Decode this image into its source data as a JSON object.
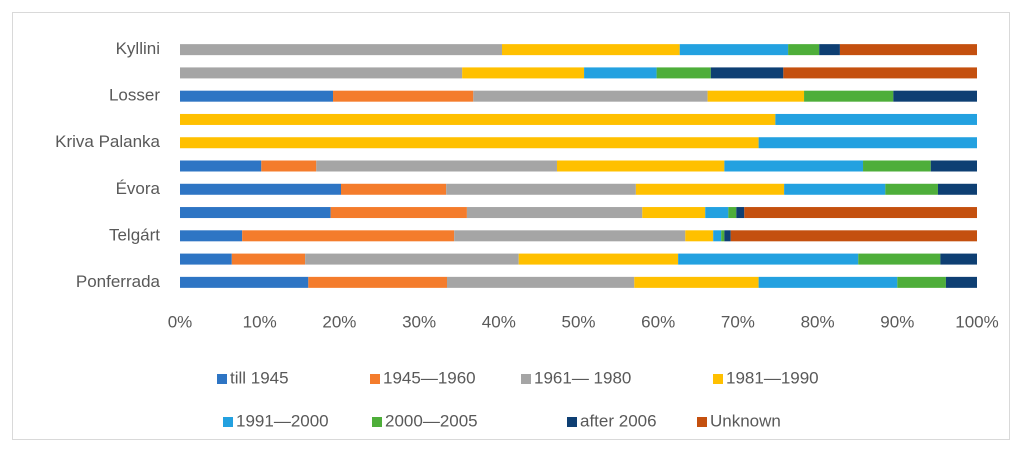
{
  "chart_data": {
    "type": "stacked-barh",
    "categories": [
      "Kyllini",
      null,
      "Losser",
      null,
      "Kriva Palanka",
      null,
      "Évora",
      null,
      "Telgárt",
      null,
      "Ponferrada"
    ],
    "series": [
      {
        "name": "till 1945",
        "color": "#2E75C4",
        "values": [
          0,
          0,
          19.2,
          0,
          0,
          10.2,
          20.2,
          18.9,
          7.8,
          6.5,
          16.1
        ]
      },
      {
        "name": "1945—1960",
        "color": "#F47C2C",
        "values": [
          0,
          0,
          17.6,
          0,
          0,
          6.9,
          13.2,
          17.1,
          26.6,
          9.2,
          17.4
        ]
      },
      {
        "name": "1961— 1980",
        "color": "#A5A5A5",
        "values": [
          40.4,
          35.4,
          29.4,
          0,
          0,
          30.2,
          23.8,
          22.0,
          29.0,
          26.8,
          23.5
        ]
      },
      {
        "name": "1981—1990",
        "color": "#FFC000",
        "values": [
          22.3,
          15.3,
          12.1,
          74.7,
          72.6,
          21.0,
          18.6,
          7.9,
          3.5,
          20.0,
          15.6
        ]
      },
      {
        "name": "1991—2000",
        "color": "#23A1E0",
        "values": [
          13.6,
          9.1,
          0,
          25.3,
          27.4,
          17.4,
          12.7,
          2.9,
          1.0,
          22.6,
          17.4
        ]
      },
      {
        "name": "2000—2005",
        "color": "#4EAE3A",
        "values": [
          3.9,
          6.8,
          11.2,
          0,
          0,
          8.5,
          6.6,
          1.0,
          0.4,
          10.3,
          6.1
        ]
      },
      {
        "name": "after 2006",
        "color": "#0E3F73",
        "values": [
          2.6,
          9.1,
          10.5,
          0,
          0,
          5.8,
          4.9,
          1.0,
          0.8,
          4.6,
          3.9
        ]
      },
      {
        "name": "Unknown",
        "color": "#C4500F",
        "values": [
          17.2,
          24.3,
          0,
          0,
          0,
          0,
          0,
          29.2,
          30.9,
          0,
          0
        ]
      }
    ],
    "xlim": [
      0,
      100
    ],
    "xticks": [
      {
        "value": 0,
        "label": "0%"
      },
      {
        "value": 10,
        "label": "10%"
      },
      {
        "value": 20,
        "label": "20%"
      },
      {
        "value": 30,
        "label": "30%"
      },
      {
        "value": 40,
        "label": "40%"
      },
      {
        "value": 50,
        "label": "50%"
      },
      {
        "value": 60,
        "label": "60%"
      },
      {
        "value": 70,
        "label": "70%"
      },
      {
        "value": 80,
        "label": "80%"
      },
      {
        "value": 90,
        "label": "90%"
      },
      {
        "value": 100,
        "label": "100%"
      }
    ],
    "grid": false,
    "legend": "bottom"
  }
}
